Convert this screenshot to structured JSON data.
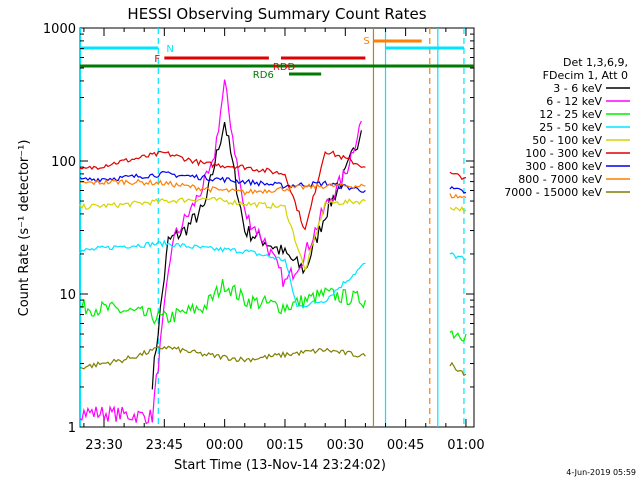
{
  "chart_data": {
    "type": "line",
    "title": "HESSI Observing Summary Count Rates",
    "xlabel": "Start Time (13-Nov-14 23:24:02)",
    "ylabel": "Count Rate (s⁻¹ detector⁻¹)",
    "ylog": true,
    "ylim": [
      1,
      1000
    ],
    "xlim": [
      "23:24:02",
      "01:02:00"
    ],
    "x_ticks": [
      "23:30",
      "23:45",
      "00:00",
      "00:15",
      "00:30",
      "00:45",
      "01:00"
    ],
    "y_ticks": [
      "1",
      "10",
      "100",
      "1000"
    ],
    "legend_header": [
      "Det 1,3,6,9,",
      "FDecim 1, Att 0"
    ],
    "legend_position": "right",
    "footer_date": "4-Jun-2019 05:59",
    "flags": [
      {
        "label": "N",
        "color": "#00e5ff"
      },
      {
        "label": "F",
        "color": "#e00000"
      },
      {
        "label": "RDD",
        "color": "#e00000"
      },
      {
        "label": "RD6",
        "color": "#007a00"
      },
      {
        "label": "S",
        "color": "#ff7f00"
      }
    ],
    "series": [
      {
        "name": "3 - 6 keV",
        "color": "#000000",
        "x": [
          "23:42",
          "23:46",
          "23:50",
          "23:55",
          "00:00",
          "00:05",
          "00:10",
          "00:15",
          "00:20",
          "00:25",
          "00:30",
          "00:34"
        ],
        "y": [
          2.2,
          25,
          30,
          45,
          200,
          30,
          25,
          20,
          15,
          40,
          80,
          170
        ]
      },
      {
        "name": "6 - 12 keV",
        "color": "#ff00ff",
        "x": [
          "23:24",
          "23:42",
          "23:47",
          "23:52",
          "23:57",
          "00:00",
          "00:05",
          "00:10",
          "00:15",
          "00:20",
          "00:25",
          "00:30",
          "00:34"
        ],
        "y": [
          1.3,
          1.2,
          25,
          45,
          90,
          380,
          40,
          25,
          12,
          20,
          45,
          80,
          200
        ]
      },
      {
        "name": "12 - 25 keV",
        "color": "#00ee00",
        "x": [
          "23:24",
          "23:35",
          "23:45",
          "23:55",
          "00:00",
          "00:05",
          "00:15",
          "00:25",
          "00:35",
          "00:56",
          "01:00"
        ],
        "y": [
          8,
          7.5,
          6.5,
          8,
          12,
          9,
          8,
          10,
          9,
          5.2,
          5
        ]
      },
      {
        "name": "25 - 50 keV",
        "color": "#00e5ff",
        "x": [
          "23:24",
          "23:35",
          "23:45",
          "23:55",
          "00:05",
          "00:15",
          "00:18",
          "00:25",
          "00:35",
          "00:56",
          "01:00"
        ],
        "y": [
          21,
          23,
          24,
          22,
          21,
          18,
          8,
          9,
          17,
          20,
          18
        ]
      },
      {
        "name": "50 - 100 keV",
        "color": "#d4d400",
        "x": [
          "23:24",
          "23:35",
          "23:45",
          "23:55",
          "00:05",
          "00:15",
          "00:20",
          "00:25",
          "00:35",
          "00:56",
          "01:00"
        ],
        "y": [
          45,
          47,
          50,
          52,
          48,
          45,
          15,
          48,
          50,
          45,
          43
        ]
      },
      {
        "name": "100 - 300 keV",
        "color": "#e00000",
        "x": [
          "23:24",
          "23:35",
          "23:45",
          "23:55",
          "00:05",
          "00:15",
          "00:20",
          "00:25",
          "00:35",
          "00:56",
          "01:00"
        ],
        "y": [
          85,
          100,
          115,
          95,
          90,
          80,
          30,
          120,
          90,
          80,
          75
        ]
      },
      {
        "name": "300 - 800 keV",
        "color": "#0000ee",
        "x": [
          "23:24",
          "23:35",
          "23:45",
          "23:55",
          "00:05",
          "00:15",
          "00:25",
          "00:35",
          "00:56",
          "01:00"
        ],
        "y": [
          72,
          75,
          80,
          75,
          70,
          65,
          68,
          60,
          62,
          58
        ]
      },
      {
        "name": "800 - 7000 keV",
        "color": "#ff7f00",
        "x": [
          "23:24",
          "23:35",
          "23:45",
          "23:55",
          "00:05",
          "00:15",
          "00:25",
          "00:35",
          "00:56",
          "01:00"
        ],
        "y": [
          68,
          70,
          68,
          62,
          58,
          62,
          65,
          65,
          55,
          53
        ]
      },
      {
        "name": "7000 - 15000 keV",
        "color": "#7f7f00",
        "x": [
          "23:24",
          "23:35",
          "23:45",
          "23:55",
          "00:05",
          "00:15",
          "00:25",
          "00:35",
          "00:56",
          "01:00"
        ],
        "y": [
          2.8,
          3.2,
          4,
          3.5,
          3.2,
          3.5,
          3.8,
          3.4,
          3,
          2.5
        ]
      }
    ]
  }
}
